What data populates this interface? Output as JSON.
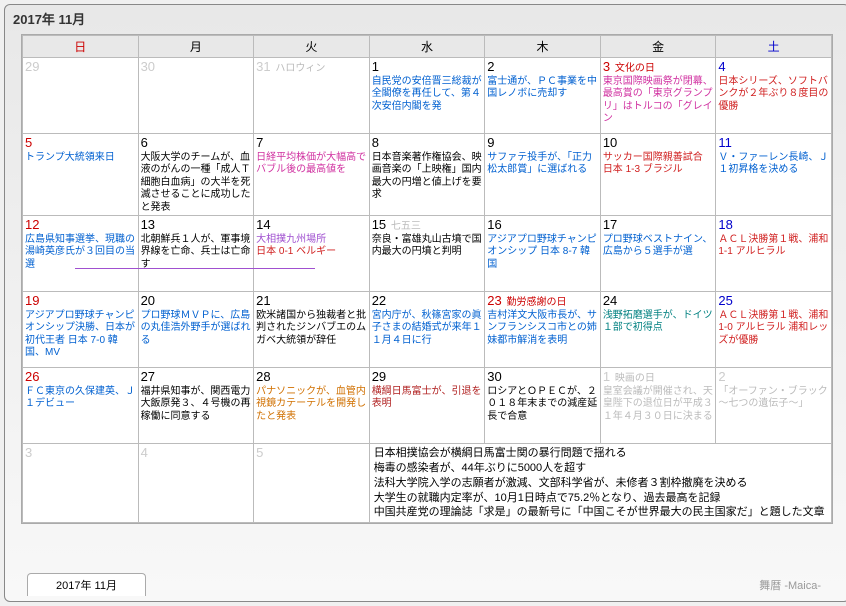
{
  "title": "2017年 11月",
  "tab": "2017年 11月",
  "brand": "舞暦 -Maica-",
  "dow": [
    "日",
    "月",
    "火",
    "水",
    "木",
    "金",
    "土"
  ],
  "colors": {
    "blue": "#0060d0",
    "red": "#d02020",
    "darkred": "#b02020",
    "green": "#008030",
    "orange": "#d07000",
    "purple": "#a040c0",
    "magenta": "#d030a0",
    "gray": "#bbbbbb",
    "teal": "#008080"
  },
  "weeks": [
    [
      {
        "n": "29",
        "cls": "other",
        "ev": []
      },
      {
        "n": "30",
        "cls": "other",
        "ev": []
      },
      {
        "n": "31",
        "cls": "other",
        "minor": "ハロウィン",
        "ev": []
      },
      {
        "n": "1",
        "ev": [
          {
            "t": "自民党の安倍晋三総裁が全閣僚を再任して、第４次安倍内閣を発",
            "c": "blue"
          }
        ]
      },
      {
        "n": "2",
        "ev": [
          {
            "t": "富士通が、ＰＣ事業を中国レノボに売却す",
            "c": "blue"
          }
        ]
      },
      {
        "n": "3",
        "cls": "hol",
        "hol": "文化の日",
        "ev": [
          {
            "t": "東京国際映画祭が閉幕、最高賞の「東京グランプリ」はトルコの「グレイン",
            "c": "magenta"
          }
        ]
      },
      {
        "n": "4",
        "cls": "sat",
        "ev": [
          {
            "t": "日本シリーズ、ソフトバンクが２年ぶり８度目の優勝",
            "c": "red"
          }
        ]
      }
    ],
    [
      {
        "n": "5",
        "cls": "sun",
        "ev": [
          {
            "t": "トランプ大統領来日",
            "c": "blue"
          }
        ]
      },
      {
        "n": "6",
        "ev": [
          {
            "t": "大阪大学のチームが、血液のがんの一種「成人Ｔ細胞白血病」の大半を死滅させることに成功したと発表",
            "c": "black"
          }
        ]
      },
      {
        "n": "7",
        "ev": [
          {
            "t": "日経平均株価が大幅高でバブル後の最高値を",
            "c": "magenta"
          }
        ]
      },
      {
        "n": "8",
        "ev": [
          {
            "t": "日本音楽著作権協会、映画音楽の「上映権」国内最大の円増と値上げを要求",
            "c": "black"
          }
        ]
      },
      {
        "n": "9",
        "ev": [
          {
            "t": "サファテ投手が、「正力松太郎賞」に選ばれる",
            "c": "blue"
          }
        ]
      },
      {
        "n": "10",
        "ev": [
          {
            "t": "サッカー国際親善試合 日本 1-3 ブラジル",
            "c": "red"
          }
        ]
      },
      {
        "n": "11",
        "cls": "sat",
        "ev": [
          {
            "t": "Ｖ・ファーレン長崎、Ｊ１初昇格を決める",
            "c": "blue"
          }
        ]
      }
    ],
    [
      {
        "n": "12",
        "cls": "sun",
        "ev": [
          {
            "t": "広島県知事選挙、現職の湯崎英彦氏が３回目の当選",
            "c": "blue"
          }
        ]
      },
      {
        "n": "13",
        "ev": [
          {
            "t": "北朝鮮兵１人が、軍事境界線を亡命、兵士は亡命す",
            "c": "black"
          }
        ]
      },
      {
        "n": "14",
        "minor2": "大相撲九州場所",
        "ev": [
          {
            "t": "日本 0-1 ベルギー",
            "c": "red"
          }
        ]
      },
      {
        "n": "15",
        "minor": "七五三",
        "ev": [
          {
            "t": "奈良・富雄丸山古墳で国内最大の円墳と判明",
            "c": "black"
          }
        ]
      },
      {
        "n": "16",
        "ev": [
          {
            "t": "アジアプロ野球チャンピオンシップ 日本 8-7 韓国",
            "c": "blue"
          }
        ]
      },
      {
        "n": "17",
        "ev": [
          {
            "t": "プロ野球ベストナイン、広島から５選手が選",
            "c": "blue"
          }
        ]
      },
      {
        "n": "18",
        "cls": "sat",
        "ev": [
          {
            "t": "ＡＣＬ決勝第１戦、浦和 1-1 アルヒラル",
            "c": "red"
          }
        ]
      }
    ],
    [
      {
        "n": "19",
        "cls": "sun",
        "ev": [
          {
            "t": "アジアプロ野球チャンピオンシップ決勝、日本が初代王者 日本 7-0 韓国、MV",
            "c": "blue"
          }
        ]
      },
      {
        "n": "20",
        "ev": [
          {
            "t": "プロ野球ＭＶＰに、広島の丸佳浩外野手が選ばれる",
            "c": "blue"
          }
        ]
      },
      {
        "n": "21",
        "ev": [
          {
            "t": "欧米諸国から独裁者と批判されたジンバブエのムガベ大統領が辞任",
            "c": "black"
          }
        ]
      },
      {
        "n": "22",
        "ev": [
          {
            "t": "宮内庁が、秋篠宮家の眞子さまの結婚式が来年１１月４日に行",
            "c": "blue"
          }
        ]
      },
      {
        "n": "23",
        "cls": "hol",
        "hol": "勤労感謝の日",
        "ev": [
          {
            "t": "吉村洋文大阪市長が、サンフランシスコ市との姉妹都市解消を表明",
            "c": "blue"
          }
        ]
      },
      {
        "n": "24",
        "ev": [
          {
            "t": "浅野拓磨選手が、ドイツ１部で初得点",
            "c": "teal"
          }
        ]
      },
      {
        "n": "25",
        "cls": "sat",
        "ev": [
          {
            "t": "ＡＣＬ決勝第１戦、浦和 1-0 アルヒラル 浦和レッズが優勝",
            "c": "red"
          }
        ]
      }
    ],
    [
      {
        "n": "26",
        "cls": "sun",
        "ev": [
          {
            "t": "ＦＣ東京の久保建英、Ｊ１デビュー",
            "c": "blue"
          }
        ]
      },
      {
        "n": "27",
        "ev": [
          {
            "t": "福井県知事が、関西電力大飯原発３、４号機の再稼働に同意する",
            "c": "black"
          }
        ]
      },
      {
        "n": "28",
        "ev": [
          {
            "t": "パナソニックが、血管内視鏡カテーテルを開発したと発表",
            "c": "orange"
          }
        ]
      },
      {
        "n": "29",
        "ev": [
          {
            "t": "横綱日馬富士が、引退を表明",
            "c": "darkred"
          }
        ]
      },
      {
        "n": "30",
        "ev": [
          {
            "t": "ロシアとＯＰＥＣが、２０１８年末までの減産延長で合意",
            "c": "black"
          }
        ]
      },
      {
        "n": "1",
        "cls": "other",
        "minor": "映画の日",
        "ev": [
          {
            "t": "皇室会議が開催され、天皇陛下の退位日が平成３１年４月３０日に決まる",
            "c": "gray"
          }
        ]
      },
      {
        "n": "2",
        "cls": "other",
        "ev": [
          {
            "t": "「オーファン・ブラック～七つの遺伝子～」",
            "c": "gray"
          }
        ]
      }
    ],
    [
      {
        "n": "3",
        "cls": "other",
        "ev": []
      },
      {
        "n": "4",
        "cls": "other",
        "ev": []
      },
      {
        "n": "5",
        "cls": "other",
        "ev": []
      }
    ]
  ],
  "footnotes": [
    "日本相撲協会が横綱日馬富士関の暴行問題で揺れる",
    "梅毒の感染者が、44年ぶりに5000人を超す",
    "法科大学院入学の志願者が激減、文部科学省が、未修者３割枠撤廃を決める",
    "大学生の就職内定率が、10月1日時点で75.2％となり、過去最高を記録",
    "中国共産党の理論誌「求是」の最新号に「中国こそが世界最大の民主国家だ」と題した文章"
  ]
}
